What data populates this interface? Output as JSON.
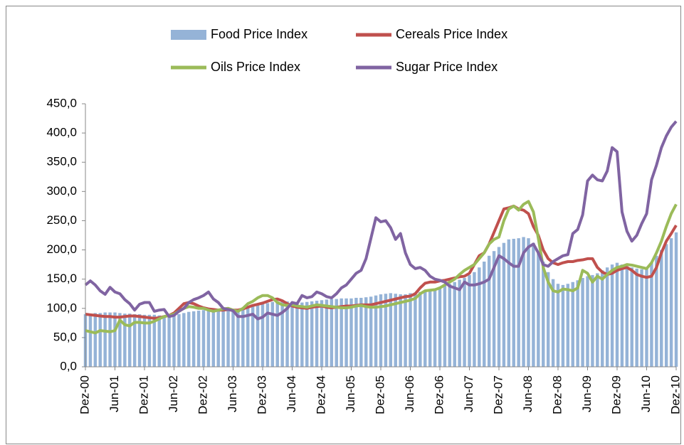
{
  "chart_data": {
    "type": "bar",
    "categories": [
      "Dez-00",
      null,
      null,
      null,
      null,
      null,
      "Jun-01",
      null,
      null,
      null,
      null,
      null,
      "Dez-01",
      null,
      null,
      null,
      null,
      null,
      "Jun-02",
      null,
      null,
      null,
      null,
      null,
      "Dez-02",
      null,
      null,
      null,
      null,
      null,
      "Jun-03",
      null,
      null,
      null,
      null,
      null,
      "Dez-03",
      null,
      null,
      null,
      null,
      null,
      "Jun-04",
      null,
      null,
      null,
      null,
      null,
      "Dez-04",
      null,
      null,
      null,
      null,
      null,
      "Jun-05",
      null,
      null,
      null,
      null,
      null,
      "Dez-05",
      null,
      null,
      null,
      null,
      null,
      "Jun-06",
      null,
      null,
      null,
      null,
      null,
      "Dez-06",
      null,
      null,
      null,
      null,
      null,
      "Jun-07",
      null,
      null,
      null,
      null,
      null,
      "Dez-07",
      null,
      null,
      null,
      null,
      null,
      "Jun-08",
      null,
      null,
      null,
      null,
      null,
      "Dez-08",
      null,
      null,
      null,
      null,
      null,
      "Jun-09",
      null,
      null,
      null,
      null,
      null,
      "Dez-09",
      null,
      null,
      null,
      null,
      null,
      "Jun-10",
      null,
      null,
      null,
      null,
      null,
      "Dez-10"
    ],
    "series": [
      {
        "name": "Food Price Index",
        "type": "bar",
        "color": "#4f81bd",
        "values": [
          90,
          91,
          92,
          92,
          93,
          93,
          93,
          92,
          91,
          91,
          90,
          90,
          89,
          89,
          89,
          88,
          88,
          88,
          89,
          90,
          92,
          94,
          95,
          96,
          97,
          98,
          98,
          97,
          97,
          98,
          98,
          99,
          100,
          102,
          104,
          106,
          107,
          109,
          111,
          112,
          113,
          112,
          111,
          110,
          110,
          111,
          112,
          113,
          114,
          115,
          116,
          116,
          117,
          117,
          117,
          118,
          118,
          119,
          120,
          122,
          124,
          125,
          126,
          125,
          124,
          124,
          126,
          127,
          128,
          130,
          132,
          134,
          137,
          139,
          142,
          145,
          149,
          152,
          157,
          162,
          170,
          180,
          190,
          198,
          205,
          212,
          218,
          219,
          220,
          222,
          220,
          212,
          196,
          180,
          162,
          150,
          142,
          140,
          142,
          145,
          148,
          152,
          155,
          157,
          160,
          165,
          170,
          175,
          178,
          175,
          172,
          170,
          168,
          167,
          168,
          178,
          190,
          200,
          210,
          220,
          230
        ]
      },
      {
        "name": "Cereals Price Index",
        "type": "line",
        "color": "#c0504d",
        "values": [
          90,
          89,
          88,
          87,
          86,
          86,
          85,
          85,
          86,
          87,
          87,
          86,
          85,
          84,
          83,
          84,
          86,
          88,
          92,
          100,
          108,
          110,
          108,
          104,
          101,
          99,
          98,
          97,
          97,
          98,
          97,
          97,
          99,
          102,
          105,
          107,
          109,
          112,
          115,
          116,
          113,
          108,
          104,
          102,
          101,
          100,
          102,
          103,
          104,
          102,
          101,
          102,
          103,
          104,
          104,
          105,
          106,
          106,
          106,
          108,
          110,
          112,
          114,
          116,
          118,
          120,
          121,
          125,
          135,
          143,
          145,
          145,
          147,
          148,
          150,
          152,
          154,
          155,
          160,
          175,
          190,
          195,
          210,
          230,
          250,
          270,
          272,
          275,
          270,
          268,
          262,
          240,
          225,
          200,
          185,
          178,
          175,
          178,
          180,
          180,
          182,
          183,
          185,
          185,
          170,
          162,
          158,
          160,
          165,
          168,
          170,
          165,
          158,
          155,
          153,
          155,
          170,
          195,
          215,
          228,
          242
        ]
      },
      {
        "name": "Oils Price Index",
        "type": "line",
        "color": "#9bbb59",
        "values": [
          62,
          60,
          58,
          62,
          61,
          60,
          62,
          80,
          72,
          70,
          76,
          76,
          75,
          75,
          78,
          82,
          86,
          88,
          90,
          95,
          100,
          103,
          102,
          100,
          100,
          97,
          95,
          97,
          99,
          100,
          97,
          95,
          100,
          108,
          112,
          118,
          122,
          122,
          118,
          110,
          106,
          105,
          106,
          104,
          103,
          102,
          104,
          106,
          105,
          104,
          103,
          102,
          101,
          101,
          102,
          104,
          105,
          103,
          102,
          102,
          103,
          104,
          106,
          108,
          110,
          112,
          114,
          117,
          125,
          130,
          131,
          132,
          135,
          140,
          145,
          150,
          158,
          165,
          170,
          175,
          185,
          195,
          210,
          218,
          222,
          250,
          270,
          275,
          268,
          278,
          283,
          265,
          220,
          170,
          145,
          130,
          128,
          133,
          132,
          130,
          135,
          165,
          160,
          145,
          155,
          150,
          158,
          165,
          170,
          172,
          175,
          174,
          172,
          170,
          168,
          178,
          195,
          215,
          240,
          262,
          278
        ]
      },
      {
        "name": "Sugar Price Index",
        "type": "line",
        "color": "#8064a2",
        "values": [
          140,
          147,
          140,
          130,
          124,
          136,
          128,
          125,
          115,
          108,
          97,
          107,
          110,
          110,
          95,
          97,
          98,
          86,
          88,
          95,
          100,
          110,
          115,
          118,
          122,
          128,
          116,
          110,
          100,
          98,
          96,
          86,
          86,
          88,
          90,
          82,
          85,
          92,
          90,
          88,
          93,
          100,
          110,
          108,
          122,
          118,
          120,
          128,
          125,
          120,
          118,
          125,
          135,
          140,
          150,
          160,
          165,
          185,
          220,
          255,
          248,
          250,
          238,
          218,
          228,
          195,
          175,
          168,
          170,
          165,
          155,
          150,
          148,
          145,
          138,
          135,
          132,
          145,
          140,
          140,
          142,
          145,
          150,
          170,
          190,
          185,
          178,
          172,
          172,
          195,
          205,
          210,
          195,
          175,
          172,
          180,
          185,
          190,
          192,
          228,
          235,
          260,
          318,
          328,
          320,
          318,
          335,
          375,
          368,
          265,
          232,
          215,
          225,
          245,
          262,
          320,
          345,
          375,
          395,
          410,
          420
        ]
      }
    ],
    "ylim": [
      0,
      450
    ],
    "yticks": [
      {
        "value": 0,
        "label": "0,0"
      },
      {
        "value": 50,
        "label": "50,0"
      },
      {
        "value": 100,
        "label": "100,0"
      },
      {
        "value": 150,
        "label": "150,0"
      },
      {
        "value": 200,
        "label": "200,0"
      },
      {
        "value": 250,
        "label": "250,0"
      },
      {
        "value": 300,
        "label": "300,0"
      },
      {
        "value": 350,
        "label": "350,0"
      },
      {
        "value": 400,
        "label": "400,0"
      },
      {
        "value": 450,
        "label": "450,0"
      }
    ],
    "grid": false
  }
}
